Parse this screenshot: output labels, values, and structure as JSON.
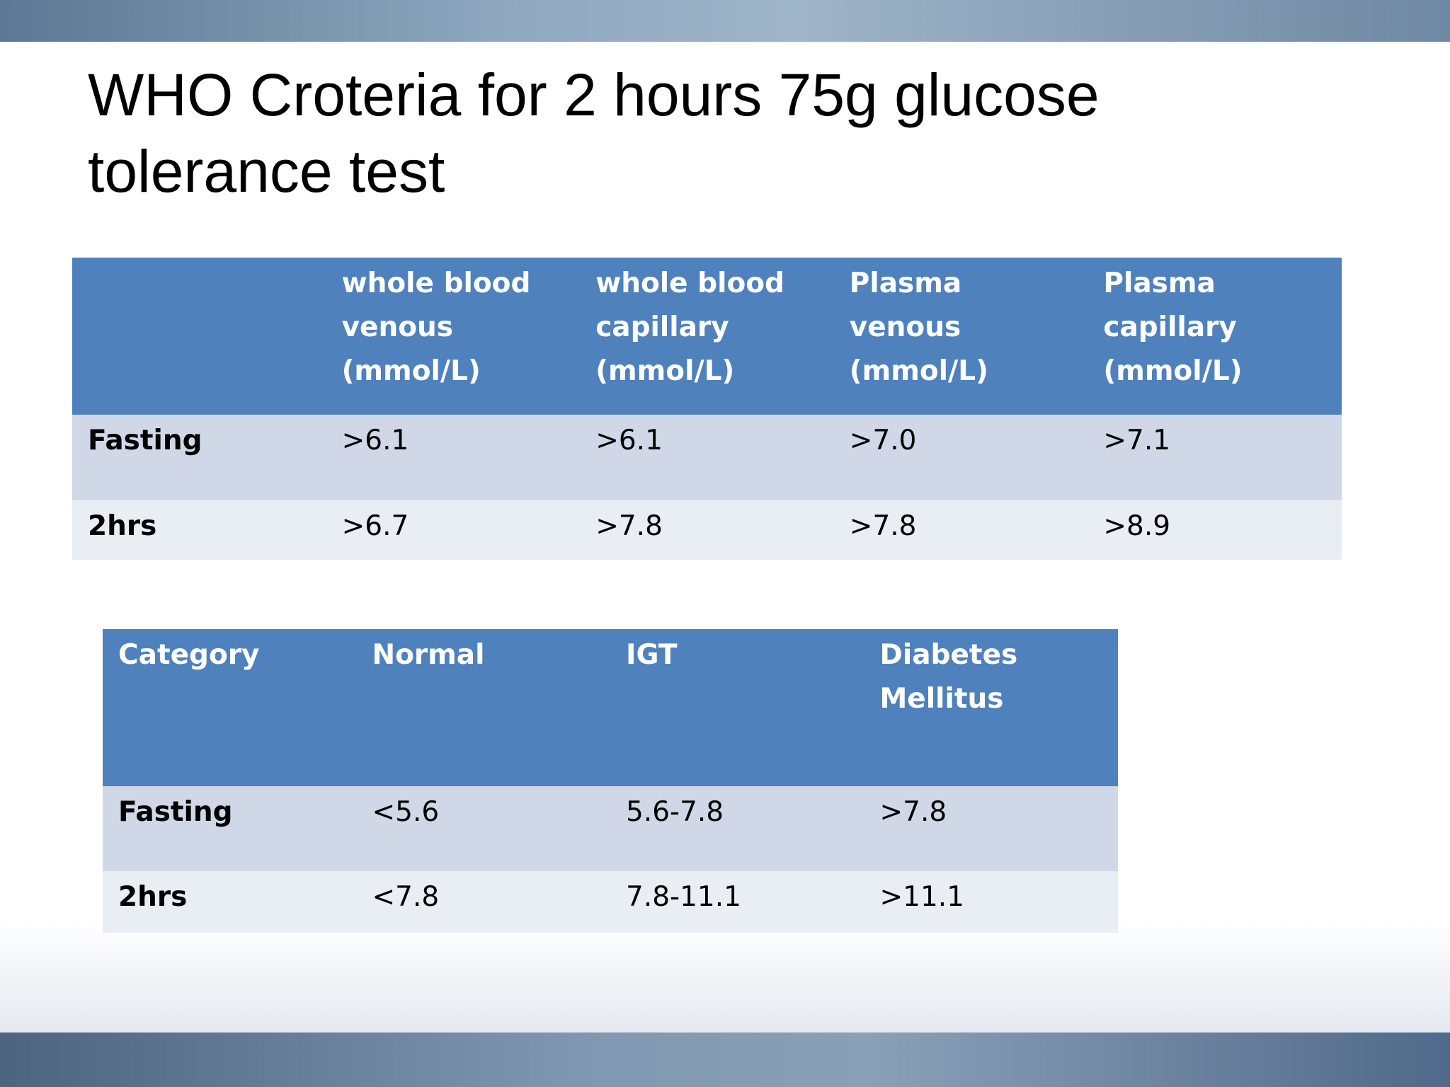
{
  "title": "WHO Croteria for 2 hours 75g glucose tolerance test",
  "table1": {
    "header": [
      "",
      "whole blood venous (mmol/L)",
      "whole blood capillary (mmol/L)",
      "Plasma venous (mmol/L)",
      "Plasma capillary (mmol/L)"
    ],
    "rows": [
      [
        "Fasting",
        ">6.1",
        ">6.1",
        ">7.0",
        ">7.1"
      ],
      [
        "2hrs",
        ">6.7",
        ">7.8",
        ">7.8",
        ">8.9"
      ]
    ]
  },
  "table2": {
    "header": [
      "Category",
      "Normal",
      "IGT",
      "Diabetes Mellitus"
    ],
    "rows": [
      [
        "Fasting",
        "<5.6",
        "5.6-7.8",
        ">7.8"
      ],
      [
        "2hrs",
        "<7.8",
        "7.8-11.1",
        ">11.1"
      ]
    ]
  }
}
